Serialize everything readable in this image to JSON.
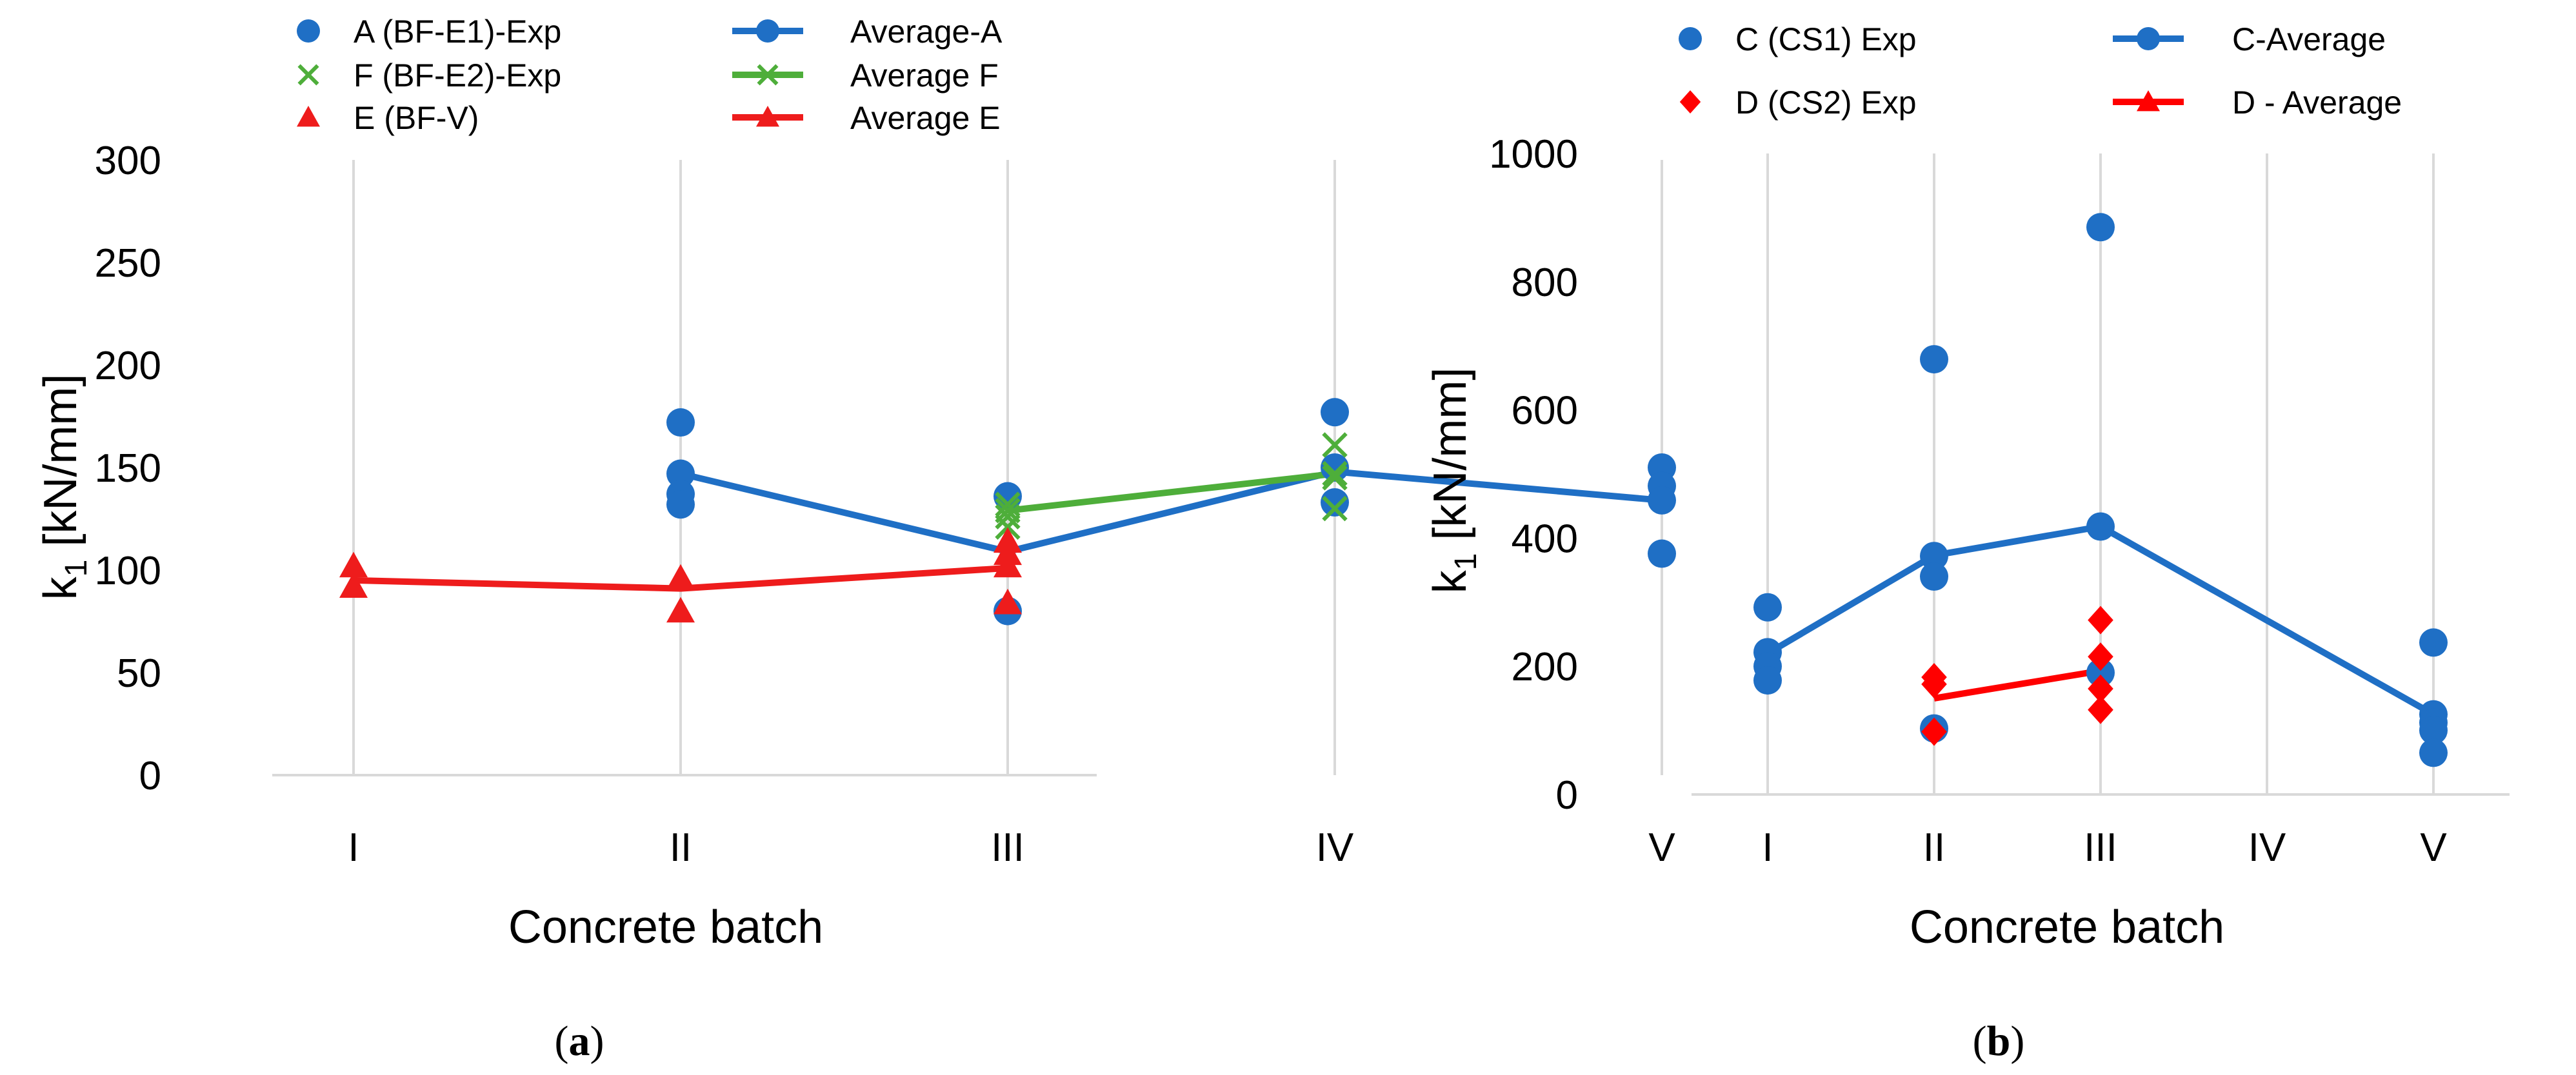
{
  "figure": {
    "panels": [
      {
        "id": "a",
        "caption_open": "(",
        "caption_label": "a",
        "caption_close": ")"
      },
      {
        "id": "b",
        "caption_open": "(",
        "caption_label": "b",
        "caption_close": ")"
      }
    ]
  },
  "chart_data": [
    {
      "type": "scatter",
      "panel": "a",
      "xlabel": "Concrete batch",
      "ylabel": "k",
      "ylabel_subscript": "1",
      "ylabel_unit": " [kN/mm]",
      "categories": [
        "I",
        "II",
        "III",
        "IV",
        "V"
      ],
      "ylim": [
        0,
        300
      ],
      "yticks": [
        0,
        50,
        100,
        150,
        200,
        250,
        300
      ],
      "grid": "vertical",
      "legend_position": "top",
      "series": [
        {
          "name": "A (BF-E1)-Exp",
          "kind": "markers",
          "marker": "circle",
          "color": "#1f6fc5",
          "points": [
            [
              2,
              172
            ],
            [
              2,
              147
            ],
            [
              2,
              137
            ],
            [
              2,
              132
            ],
            [
              3,
              136
            ],
            [
              3,
              80
            ],
            [
              4,
              177
            ],
            [
              4,
              150
            ],
            [
              4,
              133
            ],
            [
              5,
              150
            ],
            [
              5,
              141
            ],
            [
              5,
              134
            ],
            [
              5,
              108
            ]
          ]
        },
        {
          "name": "F (BF-E2)-Exp",
          "kind": "markers",
          "marker": "x",
          "color": "#4eae3a",
          "points": [
            [
              3,
              132
            ],
            [
              3,
              126
            ],
            [
              3,
              121
            ],
            [
              4,
              161
            ],
            [
              4,
              145
            ],
            [
              4,
              130
            ]
          ]
        },
        {
          "name": "E (BF-V)",
          "kind": "markers",
          "marker": "triangle",
          "color": "#ee1c1c",
          "points": [
            [
              1,
              102
            ],
            [
              1,
              92
            ],
            [
              2,
              96
            ],
            [
              2,
              80
            ],
            [
              3,
              114
            ],
            [
              3,
              108
            ],
            [
              3,
              102
            ],
            [
              3,
              84
            ]
          ]
        },
        {
          "name": "Average-A",
          "kind": "line",
          "marker": "circle",
          "color": "#1f6fc5",
          "points": [
            [
              2,
              147
            ],
            [
              3,
              109
            ],
            [
              4,
              148
            ],
            [
              5,
              134
            ]
          ]
        },
        {
          "name": "Average F",
          "kind": "line",
          "marker": "x",
          "color": "#4eae3a",
          "points": [
            [
              3,
              129
            ],
            [
              4,
              147
            ]
          ]
        },
        {
          "name": "Average E",
          "kind": "line",
          "marker": "triangle",
          "color": "#ee1c1c",
          "points": [
            [
              1,
              95
            ],
            [
              2,
              91
            ],
            [
              3,
              101
            ]
          ]
        }
      ]
    },
    {
      "type": "scatter",
      "panel": "b",
      "xlabel": "Concrete batch",
      "ylabel": "k",
      "ylabel_subscript": "1",
      "ylabel_unit": " [kN/mm]",
      "categories": [
        "I",
        "II",
        "III",
        "IV",
        "V"
      ],
      "ylim": [
        0,
        1000
      ],
      "yticks": [
        0,
        200,
        400,
        600,
        800,
        1000
      ],
      "grid": "vertical",
      "legend_position": "top",
      "series": [
        {
          "name": "C (CS1) Exp",
          "kind": "markers",
          "marker": "circle",
          "color": "#1f6fc5",
          "points": [
            [
              1,
              292
            ],
            [
              1,
              222
            ],
            [
              1,
              200
            ],
            [
              1,
              178
            ],
            [
              2,
              679
            ],
            [
              2,
              372
            ],
            [
              2,
              340
            ],
            [
              2,
              103
            ],
            [
              3,
              885
            ],
            [
              3,
              418
            ],
            [
              3,
              190
            ],
            [
              5,
              237
            ],
            [
              5,
              125
            ],
            [
              5,
              112
            ],
            [
              5,
              100
            ],
            [
              5,
              65
            ]
          ]
        },
        {
          "name": "C-Average",
          "kind": "line",
          "marker": "circle",
          "color": "#1f6fc5",
          "points": [
            [
              1,
              220
            ],
            [
              2,
              373
            ],
            [
              3,
              418
            ],
            [
              5,
              125
            ]
          ]
        },
        {
          "name": "D (CS2) Exp",
          "kind": "markers",
          "marker": "diamond",
          "color": "#ff0000",
          "points": [
            [
              2,
              183
            ],
            [
              2,
              172
            ],
            [
              2,
              98
            ],
            [
              3,
              272
            ],
            [
              3,
              215
            ],
            [
              3,
              165
            ],
            [
              3,
              132
            ]
          ]
        },
        {
          "name": "D - Average",
          "kind": "line",
          "marker": "triangle",
          "color": "#ff0000",
          "points": [
            [
              2,
              150
            ],
            [
              3,
              193
            ]
          ]
        }
      ]
    }
  ]
}
